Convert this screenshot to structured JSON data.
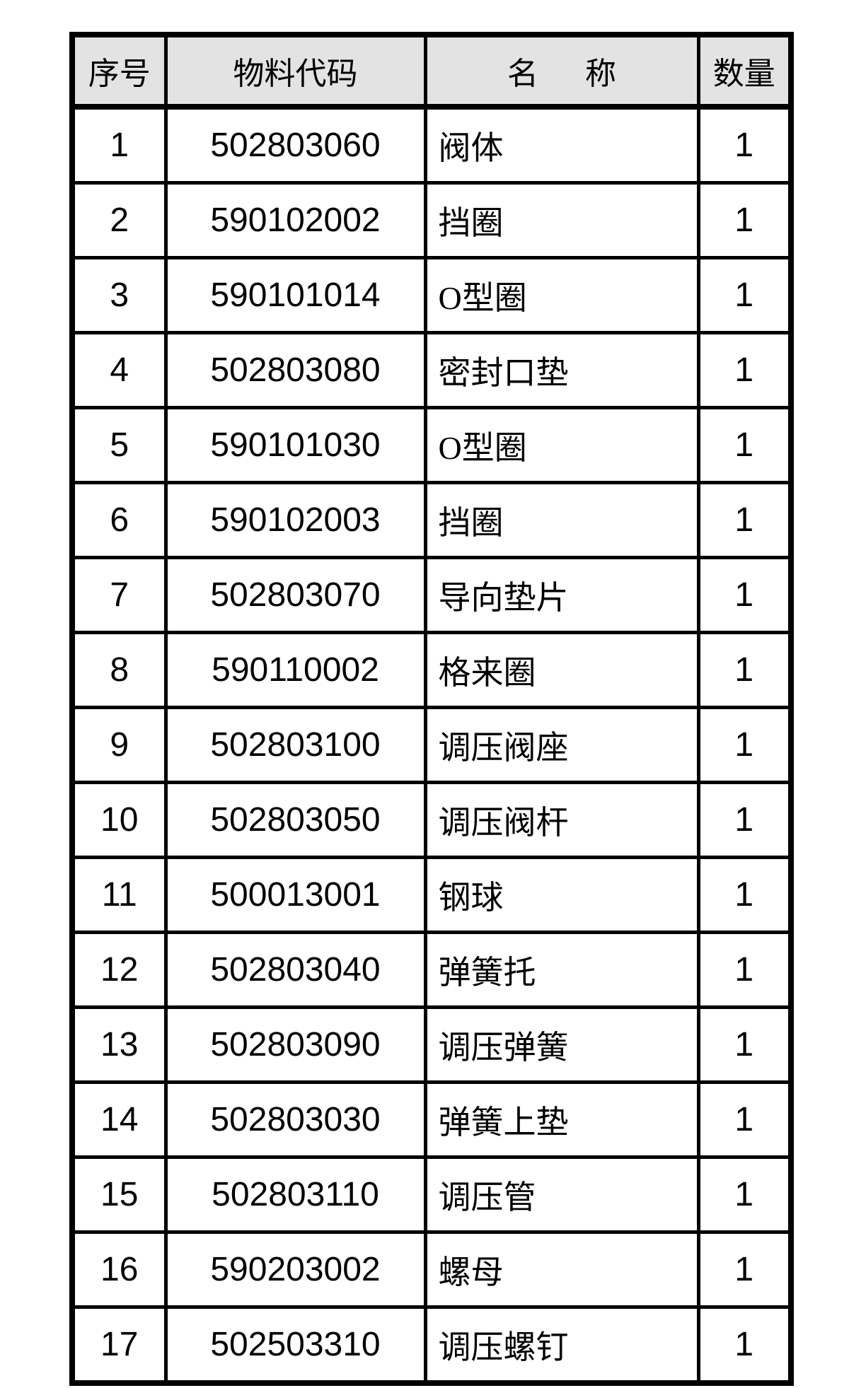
{
  "colors": {
    "header_bg": "#e3e3e3",
    "border": "#000000",
    "page_bg": "#ffffff"
  },
  "table": {
    "headers": {
      "no": "序号",
      "code": "物料代码",
      "name": "名      称",
      "qty": "数量"
    },
    "rows": [
      {
        "no": "1",
        "code": "502803060",
        "name": "阀体",
        "qty": "1"
      },
      {
        "no": "2",
        "code": "590102002",
        "name": "挡圈",
        "qty": "1"
      },
      {
        "no": "3",
        "code": "590101014",
        "name": "O型圈",
        "qty": "1"
      },
      {
        "no": "4",
        "code": "502803080",
        "name": "密封口垫",
        "qty": "1"
      },
      {
        "no": "5",
        "code": "590101030",
        "name": "O型圈",
        "qty": "1"
      },
      {
        "no": "6",
        "code": "590102003",
        "name": "挡圈",
        "qty": "1"
      },
      {
        "no": "7",
        "code": "502803070",
        "name": "导向垫片",
        "qty": "1"
      },
      {
        "no": "8",
        "code": "590110002",
        "name": "格来圈",
        "qty": "1"
      },
      {
        "no": "9",
        "code": "502803100",
        "name": "调压阀座",
        "qty": "1"
      },
      {
        "no": "10",
        "code": "502803050",
        "name": "调压阀杆",
        "qty": "1"
      },
      {
        "no": "11",
        "code": "500013001",
        "name": "钢球",
        "qty": "1"
      },
      {
        "no": "12",
        "code": "502803040",
        "name": "弹簧托",
        "qty": "1"
      },
      {
        "no": "13",
        "code": "502803090",
        "name": "调压弹簧",
        "qty": "1"
      },
      {
        "no": "14",
        "code": "502803030",
        "name": "弹簧上垫",
        "qty": "1"
      },
      {
        "no": "15",
        "code": "502803110",
        "name": "调压管",
        "qty": "1"
      },
      {
        "no": "16",
        "code": "590203002",
        "name": "螺母",
        "qty": "1"
      },
      {
        "no": "17",
        "code": "502503310",
        "name": "调压螺钉",
        "qty": "1"
      }
    ]
  }
}
